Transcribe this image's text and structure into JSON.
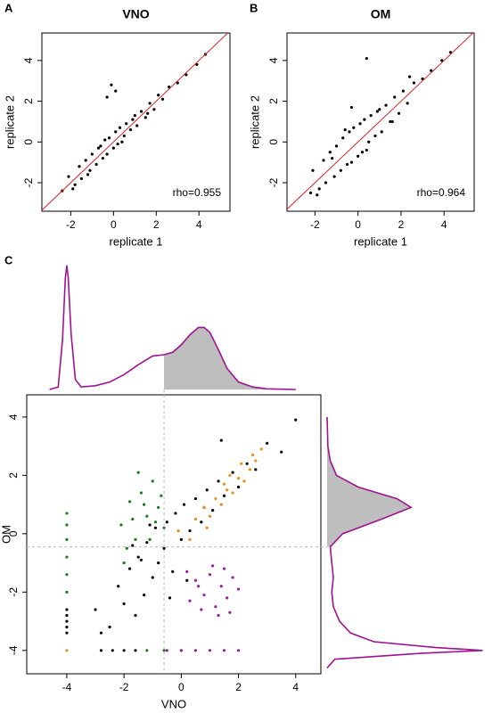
{
  "chart_data": [
    {
      "type": "scatter",
      "panel": "A",
      "title": "VNO",
      "x_label": "replicate 1",
      "y_label": "replicate 2",
      "annotation": "rho=0.955",
      "xlim": [
        -3.35,
        5.45
      ],
      "ylim": [
        -3.4,
        5.35
      ],
      "xticks": [
        -2,
        0,
        2,
        4
      ],
      "yticks": [
        -2,
        0,
        2,
        4
      ],
      "reference_line": {
        "slope": 1,
        "intercept": 0,
        "color": "#d62728"
      },
      "series": [
        {
          "color": "#000000",
          "x": [
            -2.1,
            -1.8,
            -1.6,
            -1.5,
            -1.3,
            -1.1,
            -1,
            -0.8,
            -0.7,
            -0.5,
            -0.4,
            -0.3,
            -0.2,
            0,
            0.1,
            0.2,
            0.3,
            0.5,
            0.6,
            0.8,
            1,
            1.1,
            1.3,
            1.5,
            1.7,
            1.9,
            2.1,
            2.3,
            2.6,
            3,
            3.4,
            3.9,
            4.3,
            -1.9,
            -1.2,
            -0.6,
            0.4,
            0.9,
            1.6,
            -0.3,
            -0.1,
            0.1,
            -2.4
          ],
          "values": [
            -1.7,
            -2.1,
            -1.2,
            -1.8,
            -0.9,
            -1.4,
            -0.6,
            -1.1,
            -0.3,
            -0.8,
            0.1,
            -0.6,
            0.2,
            -0.3,
            0.5,
            -0.1,
            0.7,
            0.3,
            0.9,
            0.6,
            1.3,
            0.8,
            1.5,
            1.2,
            1.9,
            1.6,
            2.3,
            2.1,
            2.7,
            2.9,
            3.3,
            3.8,
            4.3,
            -2.3,
            -1.6,
            -0.2,
            0.0,
            1.1,
            1.4,
            2.2,
            2.8,
            2.5,
            -2.4
          ]
        }
      ]
    },
    {
      "type": "scatter",
      "panel": "B",
      "title": "OM",
      "x_label": "replicate 1",
      "y_label": "replicate 2",
      "annotation": "rho=0.964",
      "xlim": [
        -3.3,
        5.4
      ],
      "ylim": [
        -3.4,
        5.35
      ],
      "xticks": [
        -2,
        0,
        2,
        4
      ],
      "yticks": [
        -2,
        0,
        2,
        4
      ],
      "reference_line": {
        "slope": 1,
        "intercept": 0,
        "color": "#d62728"
      },
      "series": [
        {
          "color": "#000000",
          "x": [
            -2.1,
            -1.8,
            -1.6,
            -1.5,
            -1.3,
            -1.1,
            -1,
            -0.8,
            -0.7,
            -0.5,
            -0.4,
            -0.3,
            -0.2,
            0,
            0.1,
            0.2,
            0.3,
            0.5,
            0.6,
            0.8,
            1,
            1.1,
            1.3,
            1.5,
            1.7,
            1.9,
            2.1,
            2.3,
            2.6,
            3,
            3.4,
            3.9,
            4.3,
            -1.9,
            -1.2,
            -0.6,
            0.4,
            0.9,
            1.6,
            -0.3,
            0.4,
            2.4,
            -2.2
          ],
          "values": [
            -1.4,
            -2.3,
            -0.9,
            -2.0,
            -0.5,
            -1.7,
            -0.2,
            -1.4,
            0.2,
            -1.1,
            0.5,
            -1.0,
            0.7,
            -0.7,
            0.9,
            -0.5,
            1.1,
            0.0,
            1.3,
            0.3,
            1.6,
            0.5,
            1.8,
            1.0,
            2.2,
            1.4,
            2.5,
            1.9,
            2.9,
            3.1,
            3.5,
            4.0,
            4.4,
            -2.6,
            -0.8,
            0.6,
            -0.4,
            1.5,
            1.0,
            1.7,
            4.1,
            3.2,
            -2.5
          ]
        }
      ]
    },
    {
      "type": "density",
      "panel": "C",
      "orientation": "horizontal",
      "xlim": [
        -5.4,
        4.88
      ],
      "ylim": [
        0,
        1.02
      ],
      "shade_from": -0.6,
      "shade_color": "#bebebe",
      "color": "#d1006f",
      "dash_color": "#3b3bd0",
      "x": [
        -4.6,
        -4.3,
        -4.15,
        -4.05,
        -4,
        -3.95,
        -3.85,
        -3.7,
        -3.5,
        -3,
        -2.5,
        -2,
        -1.5,
        -1,
        -0.6,
        -0.3,
        0,
        0.3,
        0.6,
        0.8,
        1,
        1.3,
        1.6,
        2,
        2.5,
        3,
        4
      ],
      "values": [
        0,
        0.02,
        0.4,
        0.9,
        1,
        0.9,
        0.45,
        0.08,
        0.02,
        0.03,
        0.06,
        0.12,
        0.2,
        0.27,
        0.28,
        0.3,
        0.36,
        0.44,
        0.5,
        0.5,
        0.46,
        0.32,
        0.17,
        0.06,
        0.02,
        0.005,
        0
      ]
    },
    {
      "type": "scatter",
      "x_label": "VNO",
      "y_label": "OM",
      "xlim": [
        -5.4,
        4.88
      ],
      "ylim": [
        -4.8,
        4.76
      ],
      "xticks": [
        -4,
        -2,
        0,
        2,
        4
      ],
      "yticks": [
        -4,
        -2,
        0,
        2,
        4
      ],
      "threshold_x": -0.6,
      "threshold_y": -0.45,
      "series": [
        {
          "color": "#000000",
          "x": [
            -3,
            -2.5,
            -2.2,
            -2,
            -1.8,
            -1.6,
            -1.5,
            -1.3,
            -1.2,
            -1,
            -0.9,
            -0.8,
            -0.6,
            -0.5,
            -0.3,
            -0.2,
            0,
            0.1,
            0.3,
            0.5,
            0.7,
            0.9,
            1.1,
            1.3,
            1.5,
            1.8,
            2,
            2.3,
            2.6,
            3,
            3.5,
            4,
            -1.7,
            -1.1,
            -0.4,
            0.2,
            0.8,
            1.4,
            -2.8,
            -1.4,
            -4,
            -4,
            -4,
            -4,
            -4,
            -2.8,
            -2.4,
            -2,
            -1.6
          ],
          "values": [
            -2.6,
            -3.2,
            -1.8,
            -2.4,
            -1.2,
            -2.8,
            -0.8,
            -2.1,
            -0.3,
            -1.5,
            0.2,
            -1.0,
            -0.5,
            0.4,
            -1.3,
            0.7,
            -0.2,
            1,
            0.1,
            1.2,
            0.4,
            1.5,
            0.8,
            1.8,
            1.3,
            2.1,
            1.6,
            2.4,
            2.2,
            3.1,
            2.8,
            3.9,
            -0.4,
            0.3,
            -2.2,
            -1.6,
            0.9,
            3.2,
            -3.4,
            -0.9,
            -2.6,
            -2.8,
            -3,
            -3.2,
            -3.4,
            -4,
            -4,
            -4,
            -4
          ]
        },
        {
          "color": "#1e7a1e",
          "x": [
            -4,
            -4,
            -4,
            -4,
            -4,
            -4,
            -2.1,
            -1.8,
            -1.6,
            -1.4,
            -1.2,
            -1,
            -0.8,
            -0.6,
            -1.9,
            -1.3,
            -0.9,
            -1.5,
            -2,
            -1.1,
            -0.7,
            -1.7,
            -1.2,
            -0.6,
            0
          ],
          "values": [
            0.7,
            0.3,
            -0.2,
            -0.8,
            -1.4,
            -2,
            0.3,
            1.1,
            -0.2,
            1.4,
            0.6,
            1.8,
            0.9,
            0.2,
            -0.5,
            1.0,
            0.4,
            2.1,
            -1.0,
            -0.2,
            1.3,
            0.5,
            -4,
            -4,
            -4
          ]
        },
        {
          "color": "#f08c1e",
          "x": [
            0.5,
            0.8,
            1,
            1.2,
            1.4,
            1.6,
            1.8,
            2,
            2.2,
            2.4,
            2.6,
            2.8,
            0.9,
            1.5,
            2.1,
            -0.1,
            0.3,
            1.7,
            2.5,
            -4
          ],
          "values": [
            0.5,
            0.9,
            0.6,
            1.2,
            1.0,
            1.5,
            1.4,
            1.9,
            1.8,
            2.2,
            2.5,
            2.9,
            0.2,
            1.7,
            2.4,
            0.1,
            -0.2,
            2.0,
            2.7,
            -4
          ]
        },
        {
          "color": "#9b1fa0",
          "x": [
            0.2,
            0.5,
            0.8,
            1,
            1.2,
            1.4,
            1.6,
            1.8,
            1.3,
            0.7,
            1.7,
            1.1,
            0.3,
            2,
            1.5,
            0.6,
            -0.5,
            0,
            0.5,
            1,
            1.5,
            2
          ],
          "values": [
            -1.3,
            -1.6,
            -2.1,
            -1.4,
            -2.5,
            -1.8,
            -2.2,
            -1.5,
            -2.8,
            -2.6,
            -2.7,
            -1.1,
            -2.3,
            -1.9,
            -1.2,
            -1.8,
            -4,
            -4,
            -4,
            -4,
            -4,
            -4
          ]
        }
      ]
    },
    {
      "type": "density",
      "orientation": "vertical",
      "xlim": [
        -4.8,
        4.76
      ],
      "ylim": [
        0,
        1.02
      ],
      "shade_from": -0.45,
      "shade_color": "#bebebe",
      "color": "#d1006f",
      "dash_color": "#3b3bd0",
      "x": [
        -4.6,
        -4.3,
        -4.1,
        -4,
        -3.9,
        -3.7,
        -3.4,
        -3,
        -2.5,
        -2,
        -1.5,
        -1,
        -0.45,
        0,
        0.5,
        0.9,
        1.2,
        1.6,
        2,
        2.5,
        3,
        4
      ],
      "values": [
        0,
        0.05,
        0.6,
        1,
        0.7,
        0.3,
        0.15,
        0.08,
        0.04,
        0.03,
        0.04,
        0.03,
        0.02,
        0.1,
        0.35,
        0.54,
        0.45,
        0.2,
        0.06,
        0.02,
        0.005,
        0
      ]
    }
  ]
}
